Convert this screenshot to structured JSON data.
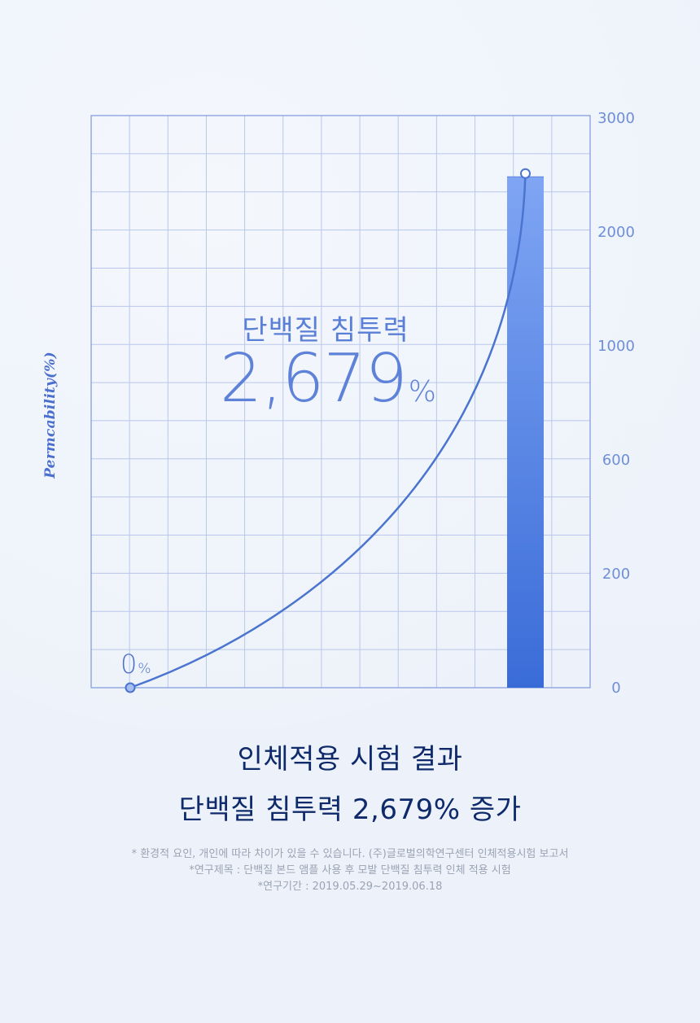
{
  "chart_data": {
    "type": "bar",
    "title": "단백질 침투력",
    "highlight_value": "2,679",
    "highlight_unit": "%",
    "ylabel": "Permcability(%)",
    "start_label": "0",
    "start_unit": "%",
    "y_ticks": [
      "3000",
      "2000",
      "1000",
      "600",
      "200",
      "0"
    ],
    "values": [
      2679
    ],
    "curve_points": [
      {
        "x": 0,
        "y": 0
      },
      {
        "x": 1,
        "y": 2679
      }
    ],
    "grid": true,
    "colors": {
      "bar_top": "#7fa5f3",
      "bar_bottom": "#3a6cd8",
      "line": "#4a74cf",
      "grid": "#b9c7ea",
      "tick_text": "#6f8ed8"
    }
  },
  "headline": {
    "line1": "인체적용 시험 결과",
    "line2": "단백질 침투력 2,679% 증가"
  },
  "footnotes": [
    "* 환경적 요인, 개인에 따라 차이가 있을 수 있습니다. (주)글로벌의학연구센터 인체적용시험 보고서",
    "*연구제목 : 단백질 본드 앰플 사용 후 모발 단백질 침투력 인체 적용 시험",
    "*연구기간 : 2019.05.29~2019.06.18"
  ]
}
